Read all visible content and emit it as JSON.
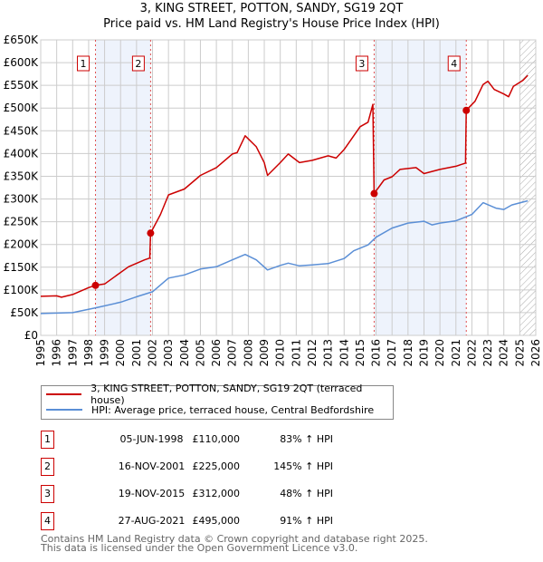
{
  "title_line1": "3, KING STREET, POTTON, SANDY, SG19 2QT",
  "title_line2": "Price paid vs. HM Land Registry's House Price Index (HPI)",
  "colors": {
    "property": "#cc0000",
    "hpi": "#5b8fd6",
    "shade": "#eef3fc",
    "grid": "#cccccc"
  },
  "chart_data": {
    "type": "line",
    "title": "Price paid vs. HM Land Registry's House Price Index (HPI)",
    "xlim": [
      1995,
      2026
    ],
    "ylim": [
      0,
      650000
    ],
    "y_ticks": [
      {
        "v": 0,
        "label": "£0"
      },
      {
        "v": 50000,
        "label": "£50K"
      },
      {
        "v": 100000,
        "label": "£100K"
      },
      {
        "v": 150000,
        "label": "£150K"
      },
      {
        "v": 200000,
        "label": "£200K"
      },
      {
        "v": 250000,
        "label": "£250K"
      },
      {
        "v": 300000,
        "label": "£300K"
      },
      {
        "v": 350000,
        "label": "£350K"
      },
      {
        "v": 400000,
        "label": "£400K"
      },
      {
        "v": 450000,
        "label": "£450K"
      },
      {
        "v": 500000,
        "label": "£500K"
      },
      {
        "v": 550000,
        "label": "£550K"
      },
      {
        "v": 600000,
        "label": "£600K"
      },
      {
        "v": 650000,
        "label": "£650K"
      }
    ],
    "x_ticks": [
      "1995",
      "1996",
      "1997",
      "1998",
      "1999",
      "2000",
      "2001",
      "2002",
      "2003",
      "2004",
      "2005",
      "2006",
      "2007",
      "2008",
      "2009",
      "2010",
      "2011",
      "2012",
      "2013",
      "2014",
      "2015",
      "2016",
      "2017",
      "2018",
      "2019",
      "2020",
      "2021",
      "2022",
      "2023",
      "2024",
      "2025",
      "2026"
    ],
    "grid": true,
    "series": [
      {
        "name": "3, KING STREET, POTTON, SANDY, SG19 2QT (terraced house)",
        "points": [
          [
            1995,
            86000
          ],
          [
            1996,
            87000
          ],
          [
            1996.3,
            84000
          ],
          [
            1997,
            90000
          ],
          [
            1998,
            105000
          ],
          [
            1998.43,
            110000
          ],
          [
            1999,
            113000
          ],
          [
            2000.5,
            151000
          ],
          [
            2001.5,
            166000
          ],
          [
            2001.83,
            170000
          ],
          [
            2001.88,
            225000
          ],
          [
            2002.5,
            266000
          ],
          [
            2003,
            309000
          ],
          [
            2004,
            322000
          ],
          [
            2005,
            352000
          ],
          [
            2006,
            369000
          ],
          [
            2007,
            399000
          ],
          [
            2007.3,
            402000
          ],
          [
            2007.8,
            439000
          ],
          [
            2008.5,
            415000
          ],
          [
            2009,
            380000
          ],
          [
            2009.2,
            352000
          ],
          [
            2010,
            380000
          ],
          [
            2010.5,
            399000
          ],
          [
            2011.2,
            380000
          ],
          [
            2012,
            385000
          ],
          [
            2013,
            395000
          ],
          [
            2013.5,
            390000
          ],
          [
            2014,
            409000
          ],
          [
            2015,
            459000
          ],
          [
            2015.5,
            469000
          ],
          [
            2015.8,
            508000
          ],
          [
            2015.88,
            312000
          ],
          [
            2016.5,
            342000
          ],
          [
            2017,
            349000
          ],
          [
            2017.5,
            365000
          ],
          [
            2018.5,
            369000
          ],
          [
            2019,
            356000
          ],
          [
            2020,
            365000
          ],
          [
            2021,
            372000
          ],
          [
            2021.6,
            379000
          ],
          [
            2021.65,
            495000
          ],
          [
            2022.2,
            515000
          ],
          [
            2022.7,
            552000
          ],
          [
            2023,
            559000
          ],
          [
            2023.4,
            541000
          ],
          [
            2024,
            531000
          ],
          [
            2024.3,
            525000
          ],
          [
            2024.6,
            548000
          ],
          [
            2025.2,
            561000
          ],
          [
            2025.5,
            572000
          ]
        ]
      },
      {
        "name": "HPI: Average price, terraced house, Central Bedfordshire",
        "points": [
          [
            1995,
            48000
          ],
          [
            1997,
            50000
          ],
          [
            1998.5,
            61000
          ],
          [
            2000,
            73000
          ],
          [
            2001,
            85000
          ],
          [
            2002,
            96000
          ],
          [
            2003,
            126000
          ],
          [
            2004,
            133000
          ],
          [
            2005,
            146000
          ],
          [
            2006,
            151000
          ],
          [
            2007,
            166000
          ],
          [
            2007.8,
            178000
          ],
          [
            2008.5,
            166000
          ],
          [
            2009.2,
            144000
          ],
          [
            2010,
            154000
          ],
          [
            2010.5,
            159000
          ],
          [
            2011.2,
            153000
          ],
          [
            2012,
            155000
          ],
          [
            2013,
            158000
          ],
          [
            2014,
            169000
          ],
          [
            2014.6,
            186000
          ],
          [
            2015.5,
            199000
          ],
          [
            2016,
            216000
          ],
          [
            2017,
            236000
          ],
          [
            2018,
            247000
          ],
          [
            2019,
            251000
          ],
          [
            2019.5,
            243000
          ],
          [
            2020,
            247000
          ],
          [
            2021,
            252000
          ],
          [
            2022,
            266000
          ],
          [
            2022.7,
            292000
          ],
          [
            2023.5,
            280000
          ],
          [
            2024,
            277000
          ],
          [
            2024.5,
            287000
          ],
          [
            2025.5,
            296000
          ]
        ]
      }
    ],
    "sales": [
      {
        "n": "1",
        "x": 1998.43,
        "price": 110000,
        "date": "05-JUN-1998",
        "price_label": "£110,000",
        "hpi_label": "83% ↑ HPI"
      },
      {
        "n": "2",
        "x": 2001.88,
        "price": 225000,
        "date": "16-NOV-2001",
        "price_label": "£225,000",
        "hpi_label": "145% ↑ HPI"
      },
      {
        "n": "3",
        "x": 2015.88,
        "price": 312000,
        "date": "19-NOV-2015",
        "price_label": "£312,000",
        "hpi_label": "48% ↑ HPI"
      },
      {
        "n": "4",
        "x": 2021.65,
        "price": 495000,
        "date": "27-AUG-2021",
        "price_label": "£495,000",
        "hpi_label": "91% ↑ HPI"
      }
    ],
    "shaded_ranges": [
      [
        1998.43,
        2001.88
      ],
      [
        2015.88,
        2021.65
      ]
    ],
    "forecast_from": 2025.0
  },
  "legend": {
    "property": "3, KING STREET, POTTON, SANDY, SG19 2QT (terraced house)",
    "hpi": "HPI: Average price, terraced house, Central Bedfordshire"
  },
  "footer": {
    "line1": "Contains HM Land Registry data © Crown copyright and database right 2025.",
    "line2": "This data is licensed under the Open Government Licence v3.0."
  }
}
